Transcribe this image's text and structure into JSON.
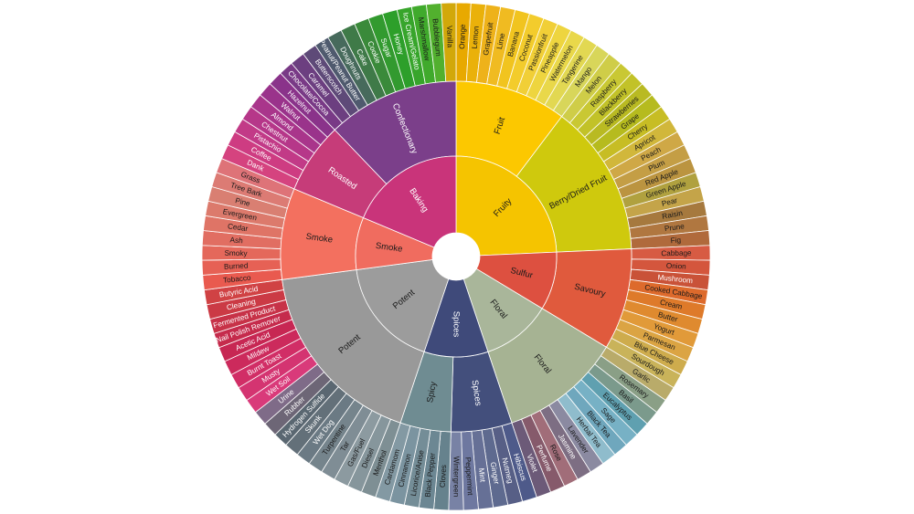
{
  "wheel": {
    "categories": [
      {
        "name": "Fruity",
        "color": "#f5c400",
        "groups": [
          {
            "name": "Fruit",
            "color": "#fcc800",
            "items": [
              {
                "label": "Orange",
                "color": "#e8a900"
              },
              {
                "label": "Lemon",
                "color": "#eab10a"
              },
              {
                "label": "Grapefruit",
                "color": "#eeb21a"
              },
              {
                "label": "Lime",
                "color": "#f0bb21"
              },
              {
                "label": "Banana",
                "color": "#f1c41f"
              },
              {
                "label": "Coconut",
                "color": "#f3cc2c"
              },
              {
                "label": "Passionfruit",
                "color": "#f1cf37"
              },
              {
                "label": "Pineapple",
                "color": "#eed53f"
              },
              {
                "label": "Watermelon",
                "color": "#e9d84a"
              },
              {
                "label": "Tangerine",
                "color": "#e2d852"
              },
              {
                "label": "Mango",
                "color": "#d8d65a"
              }
            ]
          },
          {
            "name": "Berry/Dried Fruit",
            "color": "#cfc90d",
            "items": [
              {
                "label": "Melon",
                "color": "#cfcd48"
              },
              {
                "label": "Raspberry",
                "color": "#c9c833"
              },
              {
                "label": "Blackberry",
                "color": "#c2c228"
              },
              {
                "label": "Strawberries",
                "color": "#b9ba22"
              },
              {
                "label": "Grape",
                "color": "#b6bb1e"
              },
              {
                "label": "Cherry",
                "color": "#c7bd24"
              },
              {
                "label": "Apricot",
                "color": "#d1b73b"
              },
              {
                "label": "Peach",
                "color": "#cfa846"
              },
              {
                "label": "Plum",
                "color": "#c49e45"
              },
              {
                "label": "Red Apple",
                "color": "#bb9440"
              },
              {
                "label": "Green Apple",
                "color": "#b0a13f"
              },
              {
                "label": "Pear",
                "color": "#c4a449"
              },
              {
                "label": "Raisin",
                "color": "#a6793e"
              },
              {
                "label": "Prune",
                "color": "#b07740"
              },
              {
                "label": "Fig",
                "color": "#b06a3c"
              }
            ]
          }
        ]
      },
      {
        "name": "Sulfur",
        "color": "#dd5040",
        "groups": [
          {
            "name": "Savoury",
            "color": "#e05a3d",
            "items": [
              {
                "label": "Cabbage",
                "color": "#d75b43"
              },
              {
                "label": "Onion",
                "color": "#d4563d"
              },
              {
                "label": "Mushroom",
                "color": "#c95238"
              },
              {
                "label": "Cooked Cabbage",
                "color": "#dd6a2c"
              },
              {
                "label": "Cream",
                "color": "#de7a2a"
              },
              {
                "label": "Butter",
                "color": "#df8a2f"
              },
              {
                "label": "Yogurt",
                "color": "#e19a39"
              },
              {
                "label": "Parmesan",
                "color": "#dba443"
              },
              {
                "label": "Blue Cheese",
                "color": "#ceac4d"
              },
              {
                "label": "Sourdough",
                "color": "#c9b35a"
              }
            ]
          }
        ]
      },
      {
        "name": "Floral",
        "color": "#a9b69a",
        "groups": [
          {
            "name": "Floral",
            "color": "#a6b393",
            "items": [
              {
                "label": "Garlic",
                "color": "#b9ab6a"
              },
              {
                "label": "Rosemary",
                "color": "#8a9f86"
              },
              {
                "label": "Basil",
                "color": "#7b9a8c"
              },
              {
                "label": "Eucalyptus",
                "color": "#5fa0b0"
              },
              {
                "label": "Sage",
                "color": "#77b1c5"
              },
              {
                "label": "Black Tea",
                "color": "#6fa7bd"
              },
              {
                "label": "Herbal Tea",
                "color": "#8fbccc"
              },
              {
                "label": "Lavender",
                "color": "#8b8aa1"
              },
              {
                "label": "Jasmine",
                "color": "#7d6e83"
              },
              {
                "label": "Rose",
                "color": "#a16d79"
              },
              {
                "label": "Perfume",
                "color": "#865a6b"
              },
              {
                "label": "Violet",
                "color": "#6c5a78"
              }
            ]
          }
        ]
      },
      {
        "name": "Spices",
        "color": "#3f4a7a",
        "groups": [
          {
            "name": "Spices",
            "color": "#434f7c",
            "items": [
              {
                "label": "Hibiscus",
                "color": "#4e5a8a"
              },
              {
                "label": "Nutmeg",
                "color": "#575f86"
              },
              {
                "label": "Ginger",
                "color": "#5e6a8f"
              },
              {
                "label": "Mint",
                "color": "#667096"
              },
              {
                "label": "Peppermint",
                "color": "#6e78a0"
              },
              {
                "label": "Wintergreen",
                "color": "#7882a5"
              }
            ]
          },
          {
            "name": "Spicy",
            "color": "#6f8c92",
            "items": [
              {
                "label": "Cloves",
                "color": "#66828d"
              },
              {
                "label": "Black Pepper",
                "color": "#6c8793"
              },
              {
                "label": "Licorice/Anise",
                "color": "#748d97"
              },
              {
                "label": "Cinnamon",
                "color": "#7b94a0"
              },
              {
                "label": "Cardamom",
                "color": "#8399a3"
              }
            ]
          }
        ]
      },
      {
        "name": "Potent",
        "color": "#9c9c9c",
        "groups": [
          {
            "name": "Potent",
            "color": "#999999",
            "items": [
              {
                "label": "Menthol",
                "color": "#7e8f94"
              },
              {
                "label": "Diesel",
                "color": "#86969c"
              },
              {
                "label": "Gas/Fuel",
                "color": "#8c9aa0"
              },
              {
                "label": "Tar",
                "color": "#7f8d95"
              },
              {
                "label": "Turpentine",
                "color": "#75848c"
              },
              {
                "label": "Wet Dog",
                "color": "#6b7a84"
              },
              {
                "label": "Skunk",
                "color": "#637079"
              },
              {
                "label": "Hydrogen Sulfide",
                "color": "#5a6771"
              },
              {
                "label": "Rubber",
                "color": "#6d6676"
              },
              {
                "label": "Urine",
                "color": "#7f6b88"
              },
              {
                "label": "Wet Soil",
                "color": "#d93a7a"
              },
              {
                "label": "Musty",
                "color": "#d43471"
              },
              {
                "label": "Burnt Toast",
                "color": "#d12e66"
              },
              {
                "label": "Mildew",
                "color": "#cc2a5c"
              },
              {
                "label": "Acetic Acid",
                "color": "#c72753"
              },
              {
                "label": "Nail Polish Remover",
                "color": "#c52b4c"
              },
              {
                "label": "Fermented Product",
                "color": "#c73248"
              },
              {
                "label": "Cleaning",
                "color": "#cb3a45"
              },
              {
                "label": "Butyric Acid",
                "color": "#d04244"
              }
            ]
          }
        ]
      },
      {
        "name": "Smoke",
        "color": "#f06c5f",
        "groups": [
          {
            "name": "Smoke",
            "color": "#f3705f",
            "items": [
              {
                "label": "Tobacco",
                "color": "#e95a4f"
              },
              {
                "label": "Burned",
                "color": "#e66155"
              },
              {
                "label": "Smoky",
                "color": "#e4685b"
              },
              {
                "label": "Ash",
                "color": "#e16e62"
              },
              {
                "label": "Cedar",
                "color": "#df7466"
              },
              {
                "label": "Evergreen",
                "color": "#dc7a6c"
              },
              {
                "label": "Pine",
                "color": "#d97f72"
              },
              {
                "label": "Tree Bark",
                "color": "#dc7b74"
              },
              {
                "label": "Grass",
                "color": "#de7378"
              }
            ]
          }
        ]
      },
      {
        "name": "Baking",
        "color": "#c9347a",
        "groups": [
          {
            "name": "Roasted",
            "color": "#c63c79",
            "items": [
              {
                "label": "Dank",
                "color": "#d5437f"
              },
              {
                "label": "Coffee",
                "color": "#ce3c82"
              },
              {
                "label": "Pistachio",
                "color": "#c23a87"
              },
              {
                "label": "Chestnut",
                "color": "#b63789"
              },
              {
                "label": "Almond",
                "color": "#a9358b"
              },
              {
                "label": "Walnut",
                "color": "#9a338b"
              },
              {
                "label": "Hazelnut",
                "color": "#8a338a"
              }
            ]
          },
          {
            "name": "Confectionary",
            "color": "#7b3f8a",
            "items": [
              {
                "label": "Chocolate/Cocoa",
                "color": "#793a86"
              },
              {
                "label": "Caramel",
                "color": "#6c3f80"
              },
              {
                "label": "Butterscotch",
                "color": "#5e4a78"
              },
              {
                "label": "Peanut/Peanut Butter",
                "color": "#4f5a6e"
              },
              {
                "label": "Doughnuts",
                "color": "#476a5c"
              },
              {
                "label": "Cake",
                "color": "#3f7a48"
              },
              {
                "label": "Cookie",
                "color": "#3a8a3a"
              },
              {
                "label": "Sugar",
                "color": "#329a2f"
              },
              {
                "label": "Honey",
                "color": "#2d9f2a"
              },
              {
                "label": "Ice Cream/Gelato",
                "color": "#37a52b"
              },
              {
                "label": "Marshmallow",
                "color": "#40aa2c"
              },
              {
                "label": "Bubblegum",
                "color": "#52b02e"
              },
              {
                "label": "Vanilla",
                "color": "#d2a80a"
              }
            ]
          }
        ]
      }
    ]
  }
}
